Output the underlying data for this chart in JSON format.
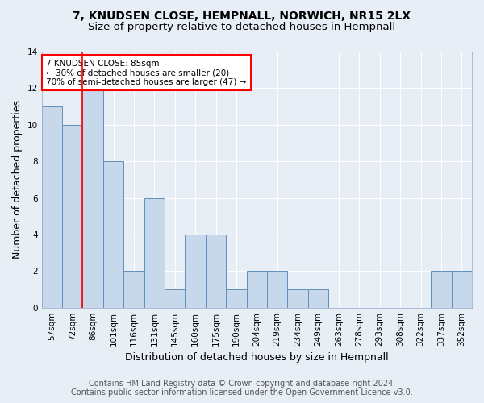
{
  "title1": "7, KNUDSEN CLOSE, HEMPNALL, NORWICH, NR15 2LX",
  "title2": "Size of property relative to detached houses in Hempnall",
  "xlabel": "Distribution of detached houses by size in Hempnall",
  "ylabel": "Number of detached properties",
  "categories": [
    "57sqm",
    "72sqm",
    "86sqm",
    "101sqm",
    "116sqm",
    "131sqm",
    "145sqm",
    "160sqm",
    "175sqm",
    "190sqm",
    "204sqm",
    "219sqm",
    "234sqm",
    "249sqm",
    "263sqm",
    "278sqm",
    "293sqm",
    "308sqm",
    "322sqm",
    "337sqm",
    "352sqm"
  ],
  "values": [
    11,
    10,
    12,
    8,
    2,
    6,
    1,
    4,
    4,
    1,
    2,
    2,
    1,
    1,
    0,
    0,
    0,
    0,
    0,
    2,
    2
  ],
  "bar_color": "#c8d8eb",
  "bar_edge_color": "#6090bb",
  "red_line_index": 2,
  "annotation_text": "7 KNUDSEN CLOSE: 85sqm\n← 30% of detached houses are smaller (20)\n70% of semi-detached houses are larger (47) →",
  "annotation_box_color": "white",
  "annotation_box_edge": "red",
  "ylim": [
    0,
    14
  ],
  "yticks": [
    0,
    2,
    4,
    6,
    8,
    10,
    12,
    14
  ],
  "footer1": "Contains HM Land Registry data © Crown copyright and database right 2024.",
  "footer2": "Contains public sector information licensed under the Open Government Licence v3.0.",
  "background_color": "#e8eef6",
  "grid_color": "white",
  "title_fontsize": 10,
  "subtitle_fontsize": 9.5,
  "axis_label_fontsize": 9,
  "tick_fontsize": 7.5,
  "footer_fontsize": 7
}
